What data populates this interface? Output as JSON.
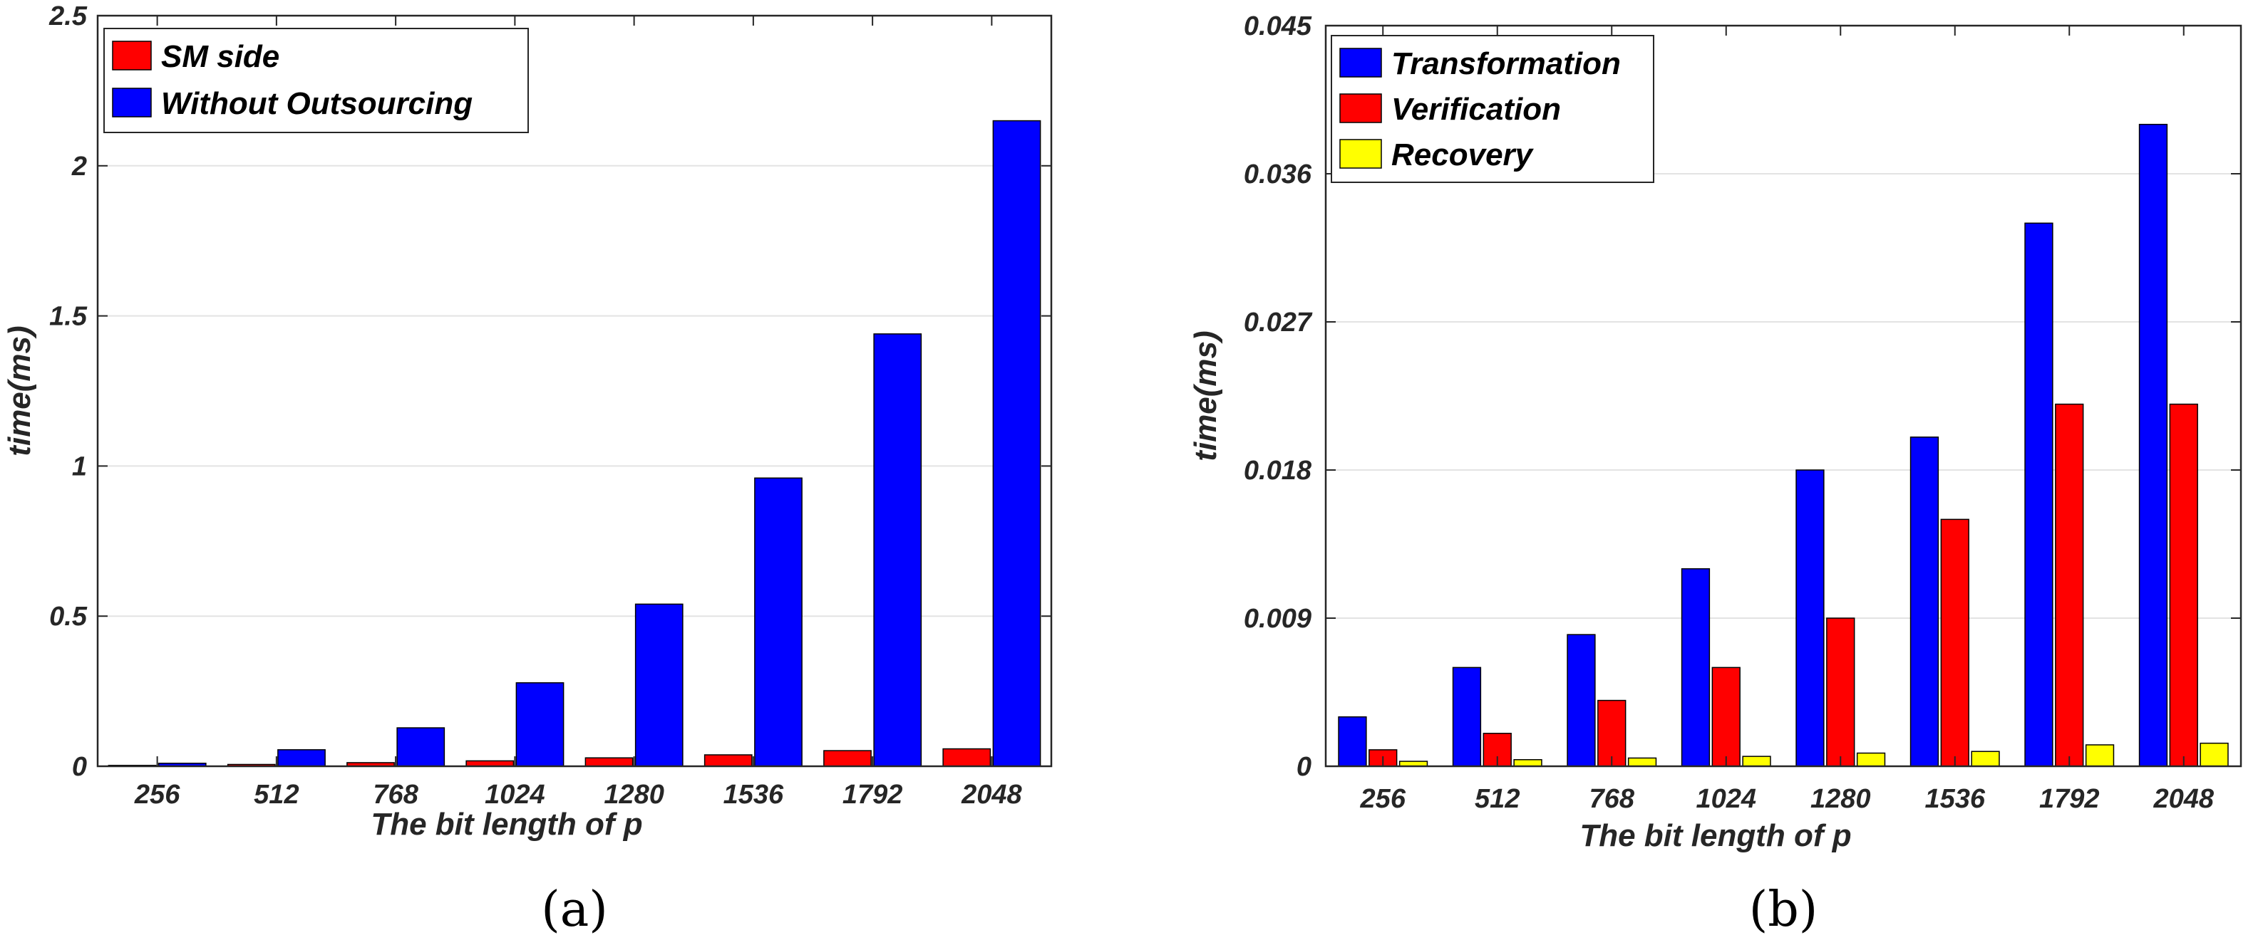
{
  "chart_data": [
    {
      "type": "bar",
      "categories": [
        "256",
        "512",
        "768",
        "1024",
        "1280",
        "1536",
        "1792",
        "2048"
      ],
      "series": [
        {
          "name": "SM side",
          "color": "#ff0000",
          "values": [
            0.003,
            0.006,
            0.012,
            0.018,
            0.028,
            0.038,
            0.052,
            0.058
          ]
        },
        {
          "name": "Without Outsourcing",
          "color": "#0000ff",
          "values": [
            0.01,
            0.055,
            0.128,
            0.278,
            0.54,
            0.96,
            1.44,
            2.15
          ]
        }
      ],
      "ylim": [
        0,
        2.5
      ],
      "yticks": [
        "0",
        "0.5",
        "1",
        "1.5",
        "2",
        "2.5"
      ],
      "ytick_values": [
        0,
        0.5,
        1,
        1.5,
        2,
        2.5
      ],
      "xlabel": "The bit length of p",
      "ylabel": "time(ms)",
      "legend_position": "top-left",
      "grid": true,
      "caption": "(a)"
    },
    {
      "type": "bar",
      "categories": [
        "256",
        "512",
        "768",
        "1024",
        "1280",
        "1536",
        "1792",
        "2048"
      ],
      "series": [
        {
          "name": "Transformation",
          "color": "#0000ff",
          "values": [
            0.003,
            0.006,
            0.008,
            0.012,
            0.018,
            0.02,
            0.033,
            0.039
          ]
        },
        {
          "name": "Verification",
          "color": "#ff0000",
          "values": [
            0.001,
            0.002,
            0.004,
            0.006,
            0.009,
            0.015,
            0.022,
            0.022
          ]
        },
        {
          "name": "Recovery",
          "color": "#ffff00",
          "values": [
            0.0003,
            0.0004,
            0.0005,
            0.0006,
            0.0008,
            0.0009,
            0.0013,
            0.0014
          ]
        }
      ],
      "ylim": [
        0,
        0.045
      ],
      "yticks": [
        "0",
        "0.009",
        "0.018",
        "0.027",
        "0.036",
        "0.045"
      ],
      "ytick_values": [
        0,
        0.009,
        0.018,
        0.027,
        0.036,
        0.045
      ],
      "xlabel": "The bit length of p",
      "ylabel": "time(ms)",
      "legend_position": "top-left",
      "grid": true,
      "caption": "(b)"
    }
  ]
}
